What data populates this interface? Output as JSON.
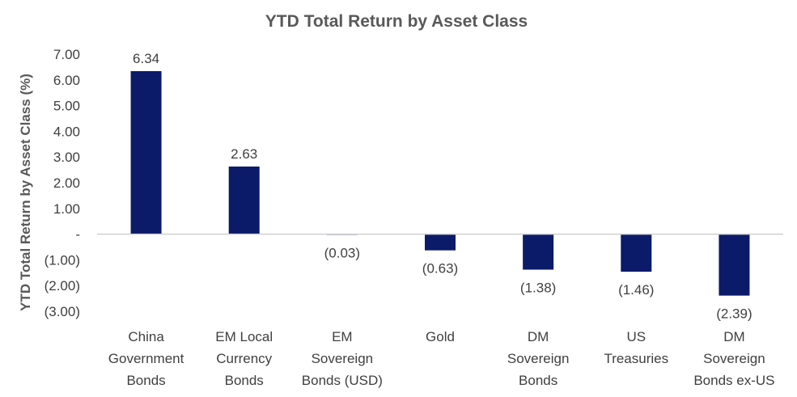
{
  "chart_data": {
    "type": "bar",
    "title": "YTD Total Return by Asset Class",
    "xlabel": "",
    "ylabel": "YTD Total Return by Asset Class (%)",
    "ylim": [
      -3,
      7
    ],
    "y_ticks": [
      7,
      6,
      5,
      4,
      3,
      2,
      1,
      0,
      -1,
      -2,
      -3
    ],
    "y_tick_labels": [
      "7.00",
      "6.00",
      "5.00",
      "4.00",
      "3.00",
      "2.00",
      "1.00",
      "-",
      "(1.00)",
      "(2.00)",
      "(3.00)"
    ],
    "categories": [
      [
        "China",
        "Government",
        "Bonds"
      ],
      [
        "EM Local",
        "Currency",
        "Bonds"
      ],
      [
        "EM",
        "Sovereign",
        "Bonds (USD)"
      ],
      [
        "Gold"
      ],
      [
        "DM",
        "Sovereign",
        "Bonds"
      ],
      [
        "US",
        "Treasuries"
      ],
      [
        "DM",
        "Sovereign",
        "Bonds ex-US"
      ]
    ],
    "values": [
      6.34,
      2.63,
      -0.03,
      -0.63,
      -1.38,
      -1.46,
      -2.39
    ],
    "data_labels": [
      "6.34",
      "2.63",
      "(0.03)",
      "(0.63)",
      "(1.38)",
      "(1.46)",
      "(2.39)"
    ],
    "bar_color": "#0b1a69",
    "grid": false,
    "legend": "none"
  }
}
